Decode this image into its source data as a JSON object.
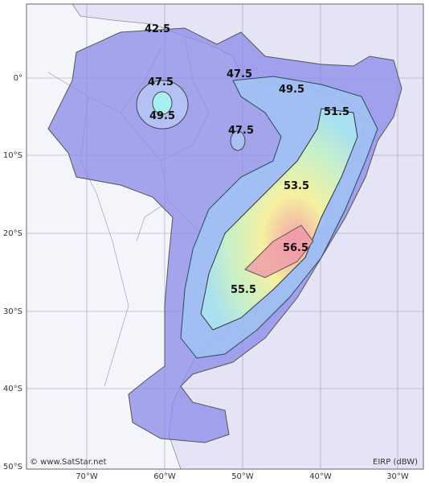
{
  "map": {
    "contour_labels": [
      "42.5",
      "47.5",
      "49.5",
      "47.5",
      "49.5",
      "47.5",
      "51.5",
      "53.5",
      "56.5",
      "55.5"
    ],
    "lat_labels": [
      "0°",
      "10°S",
      "20°S",
      "30°S",
      "40°S",
      "50°S"
    ],
    "lon_labels": [
      "70°W",
      "60°W",
      "50°W",
      "40°W",
      "30°W"
    ],
    "credit": "© www.SatStar.net",
    "unit": "EIRP (dBW)"
  }
}
